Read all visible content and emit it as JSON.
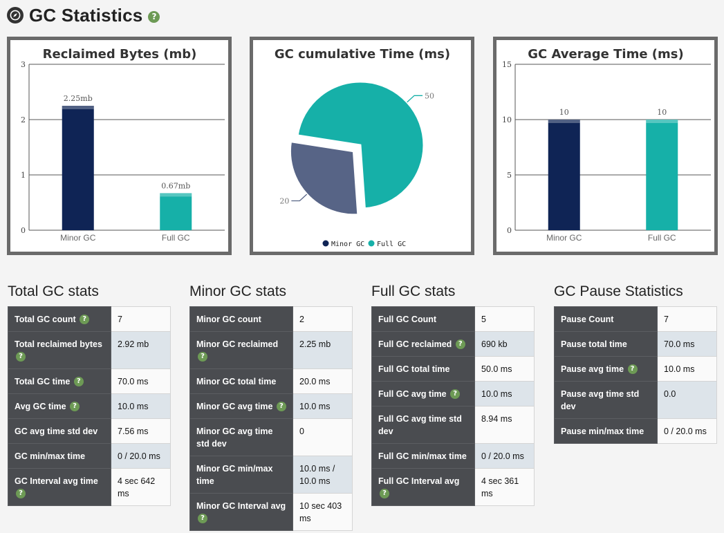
{
  "page": {
    "title": "GC Statistics",
    "title_icon": "compass-icon",
    "help_icon": "help-icon"
  },
  "colors": {
    "navy": "#0f2455",
    "teal": "#16b0a8",
    "slate": "#576486",
    "panel_border": "#6a6a6a",
    "help_green": "#6d9a55"
  },
  "chart_data": [
    {
      "type": "bar",
      "title": "Reclaimed Bytes (mb)",
      "categories": [
        "Minor GC",
        "Full GC"
      ],
      "values": [
        2.25,
        0.67
      ],
      "data_labels": [
        "2.25mb",
        "0.67mb"
      ],
      "colors": [
        "#0f2455",
        "#16b0a8"
      ],
      "yticks": [
        0,
        1,
        2,
        3
      ],
      "ylim": [
        0,
        3
      ],
      "grid": true
    },
    {
      "type": "pie",
      "title": "GC cumulative Time (ms)",
      "labels": [
        "Minor GC",
        "Full GC"
      ],
      "values": [
        20,
        50
      ],
      "data_labels": [
        "20",
        "50"
      ],
      "colors": [
        "#576486",
        "#16b0a8"
      ],
      "legend": [
        {
          "label": "Minor GC",
          "color": "#0f2455"
        },
        {
          "label": "Full GC",
          "color": "#16b0a8"
        }
      ],
      "legend_position": "bottom"
    },
    {
      "type": "bar",
      "title": "GC Average Time (ms)",
      "categories": [
        "Minor GC",
        "Full GC"
      ],
      "values": [
        10,
        10
      ],
      "data_labels": [
        "10",
        "10"
      ],
      "colors": [
        "#0f2455",
        "#16b0a8"
      ],
      "yticks": [
        0,
        5,
        10,
        15
      ],
      "ylim": [
        0,
        15
      ],
      "grid": true
    }
  ],
  "stats": [
    {
      "heading": "Total GC stats",
      "rows": [
        {
          "label": "Total GC count",
          "value": "7",
          "help": true
        },
        {
          "label": "Total reclaimed bytes",
          "value": "2.92 mb",
          "help": true
        },
        {
          "label": "Total GC time",
          "value": "70.0 ms",
          "help": true
        },
        {
          "label": "Avg GC time",
          "value": "10.0 ms",
          "help": true
        },
        {
          "label": "GC avg time std dev",
          "value": "7.56 ms",
          "help": false
        },
        {
          "label": "GC min/max time",
          "value": "0 / 20.0 ms",
          "help": false
        },
        {
          "label": "GC Interval avg time",
          "value": "4 sec 642 ms",
          "help": true
        }
      ]
    },
    {
      "heading": "Minor GC stats",
      "rows": [
        {
          "label": "Minor GC count",
          "value": "2",
          "help": false
        },
        {
          "label": "Minor GC reclaimed",
          "value": "2.25 mb",
          "help": true
        },
        {
          "label": "Minor GC total time",
          "value": "20.0 ms",
          "help": false
        },
        {
          "label": "Minor GC avg time",
          "value": "10.0 ms",
          "help": true
        },
        {
          "label": "Minor GC avg time std dev",
          "value": "0",
          "help": false
        },
        {
          "label": "Minor GC min/max time",
          "value": "10.0 ms / 10.0 ms",
          "help": false
        },
        {
          "label": "Minor GC Interval avg",
          "value": "10 sec 403 ms",
          "help": true
        }
      ]
    },
    {
      "heading": "Full GC stats",
      "rows": [
        {
          "label": "Full GC Count",
          "value": "5",
          "help": false
        },
        {
          "label": "Full GC reclaimed",
          "value": "690 kb",
          "help": true
        },
        {
          "label": "Full GC total time",
          "value": "50.0 ms",
          "help": false
        },
        {
          "label": "Full GC avg time",
          "value": "10.0 ms",
          "help": true
        },
        {
          "label": "Full GC avg time std dev",
          "value": "8.94 ms",
          "help": false
        },
        {
          "label": "Full GC min/max time",
          "value": "0 / 20.0 ms",
          "help": false
        },
        {
          "label": "Full GC Interval avg",
          "value": "4 sec 361 ms",
          "help": true
        }
      ]
    },
    {
      "heading": "GC Pause Statistics",
      "rows": [
        {
          "label": "Pause Count",
          "value": "7",
          "help": false
        },
        {
          "label": "Pause total time",
          "value": "70.0 ms",
          "help": false
        },
        {
          "label": "Pause avg time",
          "value": "10.0 ms",
          "help": true
        },
        {
          "label": "Pause avg time std dev",
          "value": "0.0",
          "help": false
        },
        {
          "label": "Pause min/max time",
          "value": "0 / 20.0 ms",
          "help": false
        }
      ]
    }
  ]
}
